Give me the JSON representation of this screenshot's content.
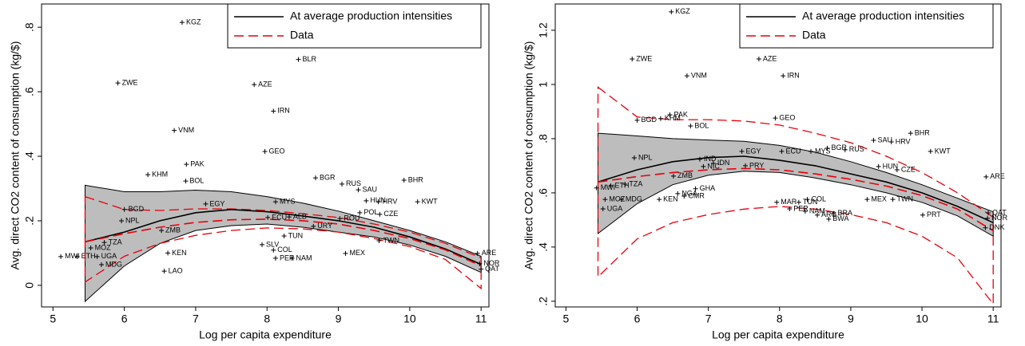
{
  "chart_data": [
    {
      "type": "scatter",
      "xlabel": "Log per capita expenditure",
      "ylabel": "Avg. direct CO2 content of consumption (kg/$)",
      "xlim": [
        4.84,
        11.11
      ],
      "ylim": [
        -0.067,
        0.872
      ],
      "xticks": [
        5,
        6,
        7,
        8,
        9,
        10,
        11
      ],
      "yticks": [
        0,
        {
          "value": 0.2,
          "label": ".2"
        },
        {
          "value": 0.4,
          "label": ".4"
        },
        {
          "value": 0.6,
          "label": ".6"
        },
        {
          "value": 0.8,
          "label": ".8"
        }
      ],
      "legend": "upper right",
      "points": {
        "marker_color": "#000000",
        "labels": [
          "KGZ",
          "BLR",
          "ZWE",
          "AZE",
          "IRN",
          "VNM",
          "GEO",
          "PAK",
          "KHM",
          "BOL",
          "BGR",
          "RUS",
          "BHR",
          "SAU",
          "EGY",
          "MYS",
          "HUN",
          "HRV",
          "KWT",
          "BGD",
          "POL",
          "CZE",
          "NPL",
          "ECU",
          "ALB",
          "ROU",
          "URY",
          "TZA",
          "MOZ",
          "ETH",
          "MWI",
          "UGA",
          "MDG",
          "LAO",
          "KEN",
          "ZMB",
          "SLV",
          "COL",
          "PER",
          "NAM",
          "MEX",
          "TWN",
          "NOR",
          "QAT",
          "ARE",
          "TUN"
        ],
        "x": [
          6.81,
          8.44,
          5.91,
          7.82,
          8.09,
          6.7,
          7.97,
          6.87,
          6.33,
          6.86,
          8.68,
          9.05,
          9.92,
          9.28,
          7.14,
          8.12,
          9.39,
          9.56,
          10.11,
          6.0,
          9.3,
          9.58,
          5.96,
          8.01,
          8.31,
          9.02,
          8.65,
          5.72,
          5.53,
          5.34,
          5.11,
          5.62,
          5.68,
          6.56,
          6.61,
          6.52,
          7.93,
          8.09,
          8.12,
          8.35,
          9.1,
          9.57,
          10.98,
          11.0,
          10.95,
          8.24
        ],
        "values": [
          0.815,
          0.7,
          0.627,
          0.622,
          0.54,
          0.48,
          0.415,
          0.375,
          0.343,
          0.323,
          0.333,
          0.314,
          0.326,
          0.296,
          0.252,
          0.259,
          0.262,
          0.259,
          0.259,
          0.235,
          0.225,
          0.22,
          0.2,
          0.21,
          0.212,
          0.207,
          0.183,
          0.133,
          0.116,
          0.089,
          0.089,
          0.089,
          0.064,
          0.044,
          0.1,
          0.17,
          0.126,
          0.109,
          0.084,
          0.084,
          0.099,
          0.138,
          0.067,
          0.05,
          0.099,
          0.153
        ]
      },
      "lines": [
        {
          "name": "At average production intensities",
          "color": "#000000",
          "ci_fill": "#bdbdbd",
          "x": [
            5.45,
            6,
            6.5,
            7,
            7.5,
            8,
            8.5,
            9,
            9.5,
            10,
            10.5,
            11
          ],
          "values": [
            0.135,
            0.165,
            0.2,
            0.225,
            0.235,
            0.228,
            0.215,
            0.2,
            0.18,
            0.15,
            0.113,
            0.065
          ],
          "upper": [
            0.31,
            0.29,
            0.29,
            0.295,
            0.29,
            0.275,
            0.255,
            0.23,
            0.2,
            0.17,
            0.135,
            0.09
          ],
          "lower": [
            -0.05,
            0.06,
            0.13,
            0.17,
            0.185,
            0.19,
            0.18,
            0.165,
            0.15,
            0.125,
            0.09,
            0.04
          ]
        },
        {
          "name": "Data",
          "color": "#e8000b",
          "dash": "12,6",
          "ci_fill": "none",
          "x": [
            5.45,
            6,
            6.5,
            7,
            7.5,
            8,
            8.5,
            9,
            9.5,
            10,
            10.5,
            11
          ],
          "values": [
            0.135,
            0.16,
            0.18,
            0.195,
            0.203,
            0.205,
            0.2,
            0.19,
            0.17,
            0.145,
            0.11,
            0.06
          ],
          "upper": [
            0.275,
            0.235,
            0.232,
            0.237,
            0.237,
            0.232,
            0.222,
            0.21,
            0.19,
            0.165,
            0.13,
            0.085
          ],
          "lower": [
            0.01,
            0.09,
            0.13,
            0.155,
            0.17,
            0.178,
            0.175,
            0.165,
            0.145,
            0.12,
            0.08,
            -0.01
          ]
        }
      ]
    },
    {
      "type": "scatter",
      "xlabel": "Log per capita expenditure",
      "ylabel": "Avg. direct CO2 content of consumption (kg/$)",
      "xlim": [
        4.85,
        11.11
      ],
      "ylim": [
        0.179,
        1.297
      ],
      "xticks": [
        5,
        6,
        7,
        8,
        9,
        10,
        11
      ],
      "yticks": [
        {
          "value": 0.2,
          "label": ".2"
        },
        {
          "value": 0.4,
          "label": ".4"
        },
        {
          "value": 0.6,
          "label": ".6"
        },
        {
          "value": 0.8,
          "label": ".8"
        },
        1,
        1.2
      ],
      "legend": "upper right",
      "points": {
        "marker_color": "#000000",
        "labels": [
          "KGZ",
          "ZWE",
          "AZE",
          "VNM",
          "IRN",
          "PAK",
          "BGD",
          "KHM",
          "GEO",
          "BOL",
          "BHR",
          "SAU",
          "HRV",
          "KWT",
          "EGY",
          "ECU",
          "MYS",
          "BGR",
          "RUS",
          "ARE",
          "NPL",
          "IND",
          "IDN",
          "NIC",
          "PRY",
          "HUN",
          "CZE",
          "MWI",
          "ETH",
          "TZA",
          "MOZ",
          "MDG",
          "UGA",
          "ZMB",
          "GHA",
          "NGA",
          "CMR",
          "KEN",
          "TUN",
          "MAR",
          "PER",
          "COL",
          "NAM",
          "ARG",
          "BRA",
          "BWA",
          "MEX",
          "TWN",
          "NOR",
          "QAT",
          "DNK",
          "PRT"
        ],
        "x": [
          6.48,
          5.93,
          7.71,
          6.7,
          8.05,
          6.46,
          6.0,
          6.33,
          7.94,
          6.75,
          9.84,
          9.32,
          9.57,
          10.12,
          7.47,
          8.03,
          8.44,
          8.67,
          8.92,
          10.9,
          5.96,
          6.88,
          7.07,
          6.93,
          7.52,
          9.39,
          9.65,
          5.43,
          5.63,
          5.83,
          5.55,
          5.78,
          5.52,
          6.51,
          6.82,
          6.57,
          6.66,
          6.31,
          8.27,
          7.96,
          8.14,
          8.39,
          8.36,
          8.53,
          8.76,
          8.69,
          9.23,
          9.59,
          10.92,
          10.93,
          10.89,
          10.01
        ],
        "values": [
          1.268,
          1.094,
          1.094,
          1.032,
          1.032,
          0.888,
          0.868,
          0.874,
          0.876,
          0.847,
          0.82,
          0.794,
          0.788,
          0.753,
          0.753,
          0.753,
          0.753,
          0.765,
          0.759,
          0.659,
          0.729,
          0.724,
          0.709,
          0.697,
          0.7,
          0.697,
          0.685,
          0.618,
          0.626,
          0.632,
          0.576,
          0.576,
          0.541,
          0.662,
          0.615,
          0.597,
          0.588,
          0.576,
          0.565,
          0.565,
          0.541,
          0.576,
          0.532,
          0.518,
          0.524,
          0.503,
          0.576,
          0.576,
          0.506,
          0.526,
          0.471,
          0.518
        ]
      },
      "lines": [
        {
          "name": "At average production intensities",
          "color": "#000000",
          "ci_fill": "#bdbdbd",
          "x": [
            5.45,
            6,
            6.5,
            7,
            7.5,
            8,
            8.5,
            9,
            9.5,
            10,
            10.5,
            11
          ],
          "values": [
            0.64,
            0.685,
            0.715,
            0.73,
            0.735,
            0.72,
            0.7,
            0.67,
            0.64,
            0.6,
            0.55,
            0.49
          ],
          "upper": [
            0.82,
            0.81,
            0.8,
            0.795,
            0.79,
            0.775,
            0.75,
            0.715,
            0.675,
            0.63,
            0.58,
            0.53
          ],
          "lower": [
            0.45,
            0.56,
            0.63,
            0.665,
            0.68,
            0.675,
            0.655,
            0.63,
            0.6,
            0.565,
            0.515,
            0.44
          ]
        },
        {
          "name": "Data",
          "color": "#e8000b",
          "dash": "12,6",
          "ci_fill": "none",
          "x": [
            5.45,
            6,
            6.5,
            7,
            7.5,
            8,
            8.5,
            9,
            9.5,
            10,
            10.5,
            11
          ],
          "values": [
            0.64,
            0.66,
            0.675,
            0.685,
            0.69,
            0.685,
            0.67,
            0.65,
            0.625,
            0.59,
            0.54,
            0.46
          ],
          "upper": [
            0.99,
            0.88,
            0.87,
            0.87,
            0.865,
            0.85,
            0.82,
            0.785,
            0.735,
            0.675,
            0.6,
            0.51
          ],
          "lower": [
            0.29,
            0.43,
            0.49,
            0.52,
            0.54,
            0.55,
            0.54,
            0.52,
            0.49,
            0.44,
            0.36,
            0.19
          ]
        }
      ]
    }
  ]
}
